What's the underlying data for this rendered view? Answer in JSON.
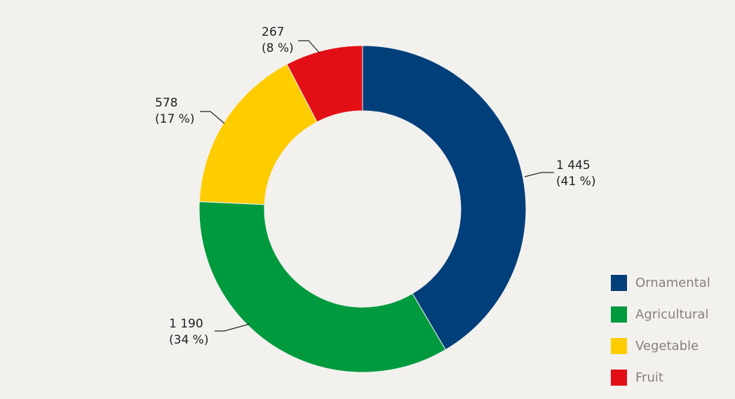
{
  "chart_data": {
    "type": "pie",
    "donut": true,
    "start": "top, clockwise",
    "legend_position": "bottom-right",
    "series": [
      {
        "name": "Ornamental",
        "value": 1445,
        "value_label": "1 445",
        "percent_label": "(41 %)",
        "color": "#003f7a"
      },
      {
        "name": "Agricultural",
        "value": 1190,
        "value_label": "1 190",
        "percent_label": "(34 %)",
        "color": "#009a3e"
      },
      {
        "name": "Vegetable",
        "value": 578,
        "value_label": "578",
        "percent_label": "(17 %)",
        "color": "#ffcc00"
      },
      {
        "name": "Fruit",
        "value": 267,
        "value_label": "267",
        "percent_label": "(8 %)",
        "color": "#e30f16"
      }
    ]
  }
}
